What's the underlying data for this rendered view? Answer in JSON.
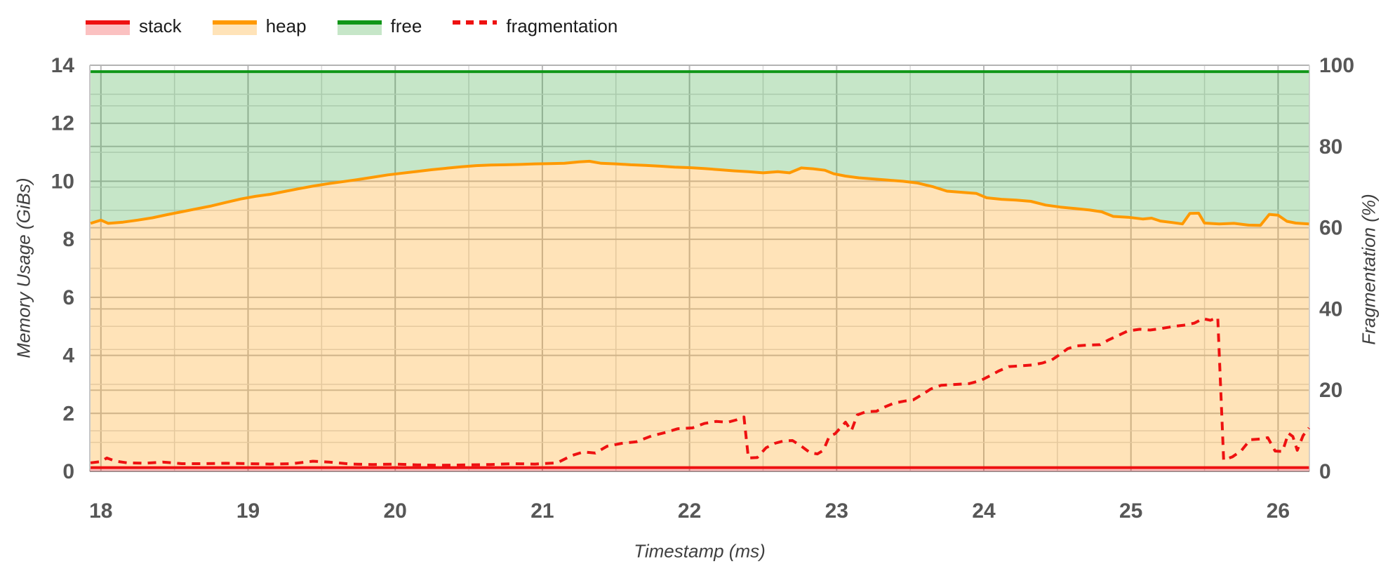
{
  "legend": {
    "items": [
      {
        "label": "stack",
        "color": "#ee1111",
        "fill": "rgba(238,17,17,0.26)",
        "dashed": false
      },
      {
        "label": "heap",
        "color": "#ff9900",
        "fill": "rgba(255,153,0,0.28)",
        "dashed": false
      },
      {
        "label": "free",
        "color": "#109618",
        "fill": "rgba(16,150,24,0.24)",
        "dashed": false
      },
      {
        "label": "fragmentation",
        "color": "#ee1111",
        "fill": "none",
        "dashed": true
      }
    ]
  },
  "axes": {
    "x": {
      "title": "Timestamp (ms)",
      "min": 17.93,
      "max": 26.21,
      "ticks": [
        18,
        19,
        20,
        21,
        22,
        23,
        24,
        25,
        26
      ],
      "minor_step": 0.5
    },
    "y_left": {
      "title": "Memory Usage (GiBs)",
      "min": 0,
      "max": 14,
      "ticks": [
        0,
        2,
        4,
        6,
        8,
        10,
        12,
        14
      ],
      "minor_step": 1
    },
    "y_right": {
      "title": "Fragmentation (%)",
      "min": 0,
      "max": 100,
      "ticks": [
        0,
        20,
        40,
        60,
        80,
        100
      ],
      "minor_step": 10
    }
  },
  "chart_data": {
    "type": "area",
    "stacked": true,
    "note": "stack/heap/free are a stacked memory area chart (left axis, GiBs); values below are the plotted cumulative tops. fragmentation is a dashed line on the right axis (%).",
    "grid": "both-axes minor+major gridlines",
    "legend_position": "top-left",
    "series": [
      {
        "name": "stack",
        "axis": "left",
        "style": "solid",
        "color": "#ee1111",
        "fill": "rgba(238,17,17,0.26)",
        "points": [
          [
            17.93,
            0.13
          ],
          [
            26.21,
            0.13
          ]
        ]
      },
      {
        "name": "heap",
        "axis": "left",
        "style": "solid",
        "color": "#ff9900",
        "fill": "rgba(255,153,0,0.28)",
        "points": [
          [
            17.93,
            8.55
          ],
          [
            18.0,
            8.66
          ],
          [
            18.05,
            8.55
          ],
          [
            18.15,
            8.59
          ],
          [
            18.25,
            8.66
          ],
          [
            18.35,
            8.74
          ],
          [
            18.45,
            8.85
          ],
          [
            18.55,
            8.95
          ],
          [
            18.65,
            9.05
          ],
          [
            18.75,
            9.15
          ],
          [
            18.85,
            9.27
          ],
          [
            18.95,
            9.39
          ],
          [
            19.05,
            9.48
          ],
          [
            19.15,
            9.55
          ],
          [
            19.25,
            9.65
          ],
          [
            19.35,
            9.75
          ],
          [
            19.45,
            9.84
          ],
          [
            19.55,
            9.92
          ],
          [
            19.65,
            9.99
          ],
          [
            19.75,
            10.06
          ],
          [
            19.85,
            10.14
          ],
          [
            19.95,
            10.22
          ],
          [
            20.05,
            10.28
          ],
          [
            20.15,
            10.34
          ],
          [
            20.25,
            10.4
          ],
          [
            20.35,
            10.45
          ],
          [
            20.45,
            10.5
          ],
          [
            20.55,
            10.54
          ],
          [
            20.65,
            10.56
          ],
          [
            20.75,
            10.57
          ],
          [
            20.85,
            10.58
          ],
          [
            20.95,
            10.6
          ],
          [
            21.05,
            10.61
          ],
          [
            21.15,
            10.62
          ],
          [
            21.25,
            10.67
          ],
          [
            21.32,
            10.69
          ],
          [
            21.4,
            10.62
          ],
          [
            21.5,
            10.6
          ],
          [
            21.6,
            10.57
          ],
          [
            21.7,
            10.55
          ],
          [
            21.8,
            10.52
          ],
          [
            21.9,
            10.49
          ],
          [
            22.0,
            10.47
          ],
          [
            22.1,
            10.44
          ],
          [
            22.2,
            10.4
          ],
          [
            22.3,
            10.36
          ],
          [
            22.4,
            10.33
          ],
          [
            22.5,
            10.29
          ],
          [
            22.6,
            10.33
          ],
          [
            22.68,
            10.29
          ],
          [
            22.76,
            10.46
          ],
          [
            22.84,
            10.43
          ],
          [
            22.92,
            10.38
          ],
          [
            22.98,
            10.26
          ],
          [
            23.06,
            10.18
          ],
          [
            23.15,
            10.12
          ],
          [
            23.25,
            10.08
          ],
          [
            23.35,
            10.04
          ],
          [
            23.45,
            10.0
          ],
          [
            23.55,
            9.94
          ],
          [
            23.65,
            9.82
          ],
          [
            23.75,
            9.66
          ],
          [
            23.85,
            9.62
          ],
          [
            23.95,
            9.58
          ],
          [
            24.02,
            9.43
          ],
          [
            24.12,
            9.38
          ],
          [
            24.22,
            9.35
          ],
          [
            24.32,
            9.31
          ],
          [
            24.42,
            9.18
          ],
          [
            24.52,
            9.11
          ],
          [
            24.62,
            9.06
          ],
          [
            24.72,
            9.01
          ],
          [
            24.8,
            8.95
          ],
          [
            24.88,
            8.79
          ],
          [
            24.98,
            8.76
          ],
          [
            25.08,
            8.7
          ],
          [
            25.14,
            8.73
          ],
          [
            25.2,
            8.63
          ],
          [
            25.28,
            8.58
          ],
          [
            25.35,
            8.53
          ],
          [
            25.4,
            8.89
          ],
          [
            25.46,
            8.9
          ],
          [
            25.5,
            8.56
          ],
          [
            25.6,
            8.53
          ],
          [
            25.7,
            8.55
          ],
          [
            25.8,
            8.49
          ],
          [
            25.88,
            8.48
          ],
          [
            25.94,
            8.86
          ],
          [
            26.0,
            8.83
          ],
          [
            26.06,
            8.62
          ],
          [
            26.12,
            8.56
          ],
          [
            26.21,
            8.53
          ]
        ]
      },
      {
        "name": "free",
        "axis": "left",
        "style": "solid",
        "color": "#109618",
        "fill": "rgba(16,150,24,0.24)",
        "points": [
          [
            17.93,
            13.78
          ],
          [
            26.21,
            13.78
          ]
        ]
      },
      {
        "name": "fragmentation",
        "axis": "right",
        "style": "dashed",
        "color": "#ee1111",
        "fill": "none",
        "points": [
          [
            17.93,
            2.1
          ],
          [
            18.0,
            2.4
          ],
          [
            18.04,
            3.3
          ],
          [
            18.1,
            2.5
          ],
          [
            18.18,
            2.1
          ],
          [
            18.3,
            2.0
          ],
          [
            18.42,
            2.3
          ],
          [
            18.55,
            1.9
          ],
          [
            18.7,
            1.9
          ],
          [
            18.85,
            2.0
          ],
          [
            19.0,
            1.9
          ],
          [
            19.15,
            1.8
          ],
          [
            19.3,
            1.9
          ],
          [
            19.44,
            2.5
          ],
          [
            19.55,
            2.3
          ],
          [
            19.7,
            1.8
          ],
          [
            19.85,
            1.7
          ],
          [
            20.0,
            1.8
          ],
          [
            20.15,
            1.6
          ],
          [
            20.3,
            1.5
          ],
          [
            20.5,
            1.6
          ],
          [
            20.65,
            1.7
          ],
          [
            20.8,
            1.9
          ],
          [
            20.95,
            1.8
          ],
          [
            21.1,
            2.1
          ],
          [
            21.2,
            3.9
          ],
          [
            21.28,
            4.8
          ],
          [
            21.36,
            4.5
          ],
          [
            21.44,
            6.2
          ],
          [
            21.54,
            6.9
          ],
          [
            21.64,
            7.3
          ],
          [
            21.74,
            8.7
          ],
          [
            21.84,
            9.6
          ],
          [
            21.92,
            10.5
          ],
          [
            22.02,
            10.7
          ],
          [
            22.1,
            11.8
          ],
          [
            22.18,
            12.3
          ],
          [
            22.26,
            12.1
          ],
          [
            22.32,
            12.7
          ],
          [
            22.37,
            13.4
          ],
          [
            22.4,
            3.3
          ],
          [
            22.46,
            3.4
          ],
          [
            22.52,
            5.8
          ],
          [
            22.58,
            6.9
          ],
          [
            22.64,
            7.5
          ],
          [
            22.7,
            7.6
          ],
          [
            22.76,
            6.2
          ],
          [
            22.82,
            4.6
          ],
          [
            22.87,
            4.3
          ],
          [
            22.91,
            5.2
          ],
          [
            22.95,
            8.6
          ],
          [
            22.99,
            9.3
          ],
          [
            23.03,
            10.9
          ],
          [
            23.06,
            12.1
          ],
          [
            23.1,
            10.0
          ],
          [
            23.14,
            13.9
          ],
          [
            23.2,
            14.7
          ],
          [
            23.27,
            14.8
          ],
          [
            23.33,
            15.9
          ],
          [
            23.39,
            16.8
          ],
          [
            23.46,
            17.3
          ],
          [
            23.52,
            17.6
          ],
          [
            23.58,
            18.9
          ],
          [
            23.64,
            20.3
          ],
          [
            23.71,
            21.2
          ],
          [
            23.8,
            21.4
          ],
          [
            23.9,
            21.6
          ],
          [
            23.98,
            22.4
          ],
          [
            24.04,
            23.5
          ],
          [
            24.1,
            24.7
          ],
          [
            24.17,
            25.8
          ],
          [
            24.25,
            26.0
          ],
          [
            24.33,
            26.2
          ],
          [
            24.4,
            26.7
          ],
          [
            24.46,
            27.4
          ],
          [
            24.51,
            28.6
          ],
          [
            24.57,
            30.2
          ],
          [
            24.63,
            30.9
          ],
          [
            24.71,
            31.1
          ],
          [
            24.79,
            31.2
          ],
          [
            24.85,
            32.4
          ],
          [
            24.91,
            33.4
          ],
          [
            24.98,
            34.6
          ],
          [
            25.06,
            35.0
          ],
          [
            25.13,
            34.8
          ],
          [
            25.21,
            35.2
          ],
          [
            25.29,
            35.7
          ],
          [
            25.36,
            36.0
          ],
          [
            25.43,
            36.5
          ],
          [
            25.49,
            37.6
          ],
          [
            25.54,
            37.2
          ],
          [
            25.59,
            37.9
          ],
          [
            25.63,
            2.8
          ],
          [
            25.69,
            3.6
          ],
          [
            25.75,
            5.1
          ],
          [
            25.81,
            7.8
          ],
          [
            25.89,
            8.0
          ],
          [
            25.93,
            8.3
          ],
          [
            25.98,
            5.0
          ],
          [
            26.03,
            4.9
          ],
          [
            26.07,
            9.4
          ],
          [
            26.1,
            8.6
          ],
          [
            26.13,
            5.2
          ],
          [
            26.17,
            8.8
          ],
          [
            26.21,
            10.7
          ]
        ]
      }
    ]
  }
}
